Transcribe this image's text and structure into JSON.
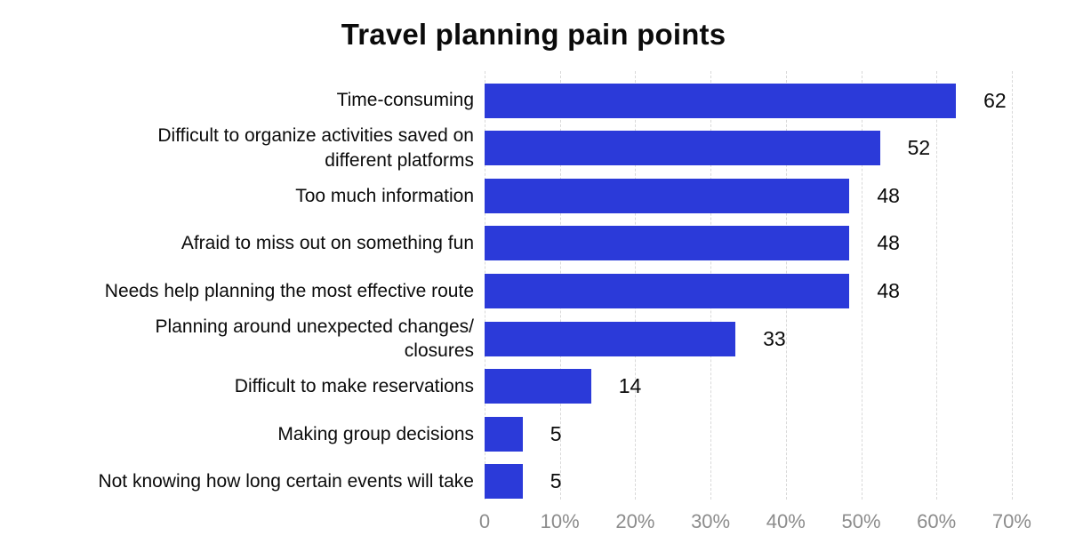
{
  "chart_data": {
    "type": "bar",
    "orientation": "horizontal",
    "title": "Travel planning pain points",
    "categories": [
      "Time-consuming",
      "Difficult to organize activities saved on\ndifferent platforms",
      "Too much information",
      "Afraid to miss out on something fun",
      "Needs help planning the most effective route",
      "Planning around unexpected changes/\nclosures",
      "Difficult to make reservations",
      "Making group decisions",
      "Not knowing how long certain events will take"
    ],
    "values": [
      62,
      52,
      48,
      48,
      48,
      33,
      14,
      5,
      5
    ],
    "value_label_position": "outside-end",
    "x_tick_labels": [
      "0",
      "10%",
      "20%",
      "30%",
      "40%",
      "50%",
      "60%",
      "70%"
    ],
    "xlim": [
      0,
      70
    ],
    "grid": "vertical-dashed",
    "legend": "none",
    "colors": {
      "bar": "#2B3AD9",
      "grid": "#D9D9D9",
      "tick_text": "#8C8C8C",
      "label_text": "#0B0B0B",
      "background": "#FFFFFF"
    }
  }
}
